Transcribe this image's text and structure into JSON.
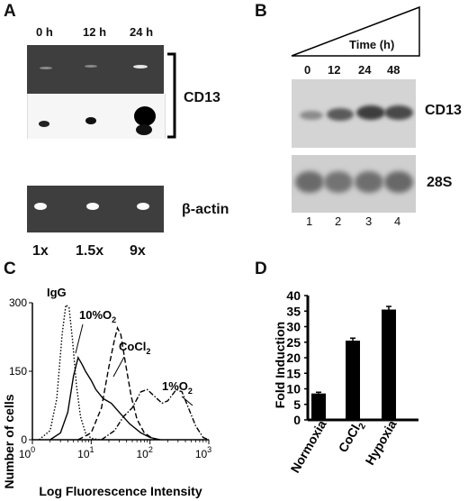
{
  "panels": {
    "a": {
      "letter": "A",
      "time_labels": [
        "0 h",
        "12 h",
        "24 h"
      ],
      "row_label_cd13": "CD13",
      "row_label_actin": "β-actin",
      "fold_labels": [
        "1x",
        "1.5x",
        "9x"
      ]
    },
    "b": {
      "letter": "B",
      "time_header": "Time (h)",
      "time_labels": [
        "0",
        "12",
        "24",
        "48"
      ],
      "row_label_cd13": "CD13",
      "row_label_28s": "28S",
      "lane_numbers": [
        "1",
        "2",
        "3",
        "4"
      ]
    },
    "c": {
      "letter": "C",
      "ylabel": "Number of cells",
      "xlabel": "Log Fluorescence Intensity",
      "y_ticks": [
        "0",
        "150",
        "300"
      ],
      "x_ticks": [
        {
          "base": "10",
          "exp": "0"
        },
        {
          "base": "10",
          "exp": "1"
        },
        {
          "base": "10",
          "exp": "2"
        },
        {
          "base": "10",
          "exp": "3"
        }
      ],
      "curve_labels": {
        "igg": "IgG",
        "ten": "10%O",
        "ten_sub": "2",
        "cocl": "CoCl",
        "cocl_sub": "2",
        "one": "1%O",
        "one_sub": "2"
      }
    },
    "d": {
      "letter": "D",
      "ylabel": "Fold Induction",
      "y_ticks": [
        "0",
        "5",
        "10",
        "15",
        "20",
        "25",
        "30",
        "35",
        "40"
      ],
      "bar_labels": {
        "normoxia": "Normoxia",
        "cocl": "CoCl",
        "cocl_sub": "2",
        "hypoxia": "Hypoxia"
      }
    }
  },
  "chart_data": [
    {
      "type": "line",
      "panel": "C",
      "title": "",
      "xlabel": "Log Fluorescence Intensity",
      "ylabel": "Number of cells",
      "x_scale": "log",
      "xlim": [
        1,
        1000
      ],
      "ylim": [
        0,
        300
      ],
      "series": [
        {
          "name": "IgG",
          "style": "dotted",
          "points": [
            [
              1.3,
              0
            ],
            [
              2,
              20
            ],
            [
              2.6,
              90
            ],
            [
              3.2,
              230
            ],
            [
              3.7,
              295
            ],
            [
              4.2,
              290
            ],
            [
              4.8,
              220
            ],
            [
              5.6,
              120
            ],
            [
              6.6,
              50
            ],
            [
              8,
              15
            ],
            [
              10,
              3
            ],
            [
              14,
              0
            ]
          ]
        },
        {
          "name": "10%O2",
          "style": "solid",
          "points": [
            [
              2,
              0
            ],
            [
              3,
              15
            ],
            [
              4,
              60
            ],
            [
              5,
              140
            ],
            [
              6,
              180
            ],
            [
              7,
              165
            ],
            [
              8,
              150
            ],
            [
              10,
              130
            ],
            [
              12,
              110
            ],
            [
              16,
              90
            ],
            [
              22,
              80
            ],
            [
              30,
              60
            ],
            [
              45,
              35
            ],
            [
              70,
              15
            ],
            [
              100,
              5
            ],
            [
              150,
              0
            ]
          ]
        },
        {
          "name": "CoCl2",
          "style": "dashed",
          "points": [
            [
              6,
              0
            ],
            [
              10,
              15
            ],
            [
              15,
              70
            ],
            [
              20,
              160
            ],
            [
              25,
              220
            ],
            [
              28,
              245
            ],
            [
              32,
              230
            ],
            [
              38,
              170
            ],
            [
              48,
              95
            ],
            [
              60,
              45
            ],
            [
              80,
              15
            ],
            [
              110,
              3
            ],
            [
              150,
              0
            ]
          ]
        },
        {
          "name": "1%O2",
          "style": "dash-dot",
          "points": [
            [
              15,
              0
            ],
            [
              25,
              20
            ],
            [
              35,
              50
            ],
            [
              50,
              70
            ],
            [
              70,
              105
            ],
            [
              90,
              110
            ],
            [
              120,
              95
            ],
            [
              160,
              80
            ],
            [
              200,
              85
            ],
            [
              280,
              110
            ],
            [
              350,
              105
            ],
            [
              450,
              70
            ],
            [
              600,
              30
            ],
            [
              800,
              5
            ],
            [
              1000,
              0
            ]
          ]
        }
      ]
    },
    {
      "type": "bar",
      "panel": "D",
      "title": "",
      "xlabel": "",
      "ylabel": "Fold Induction",
      "categories": [
        "Normoxia",
        "CoCl2",
        "Hypoxia"
      ],
      "values": [
        8.5,
        25.5,
        35.5
      ],
      "errors": [
        0.4,
        0.8,
        1.0
      ],
      "ylim": [
        0,
        40
      ]
    }
  ]
}
